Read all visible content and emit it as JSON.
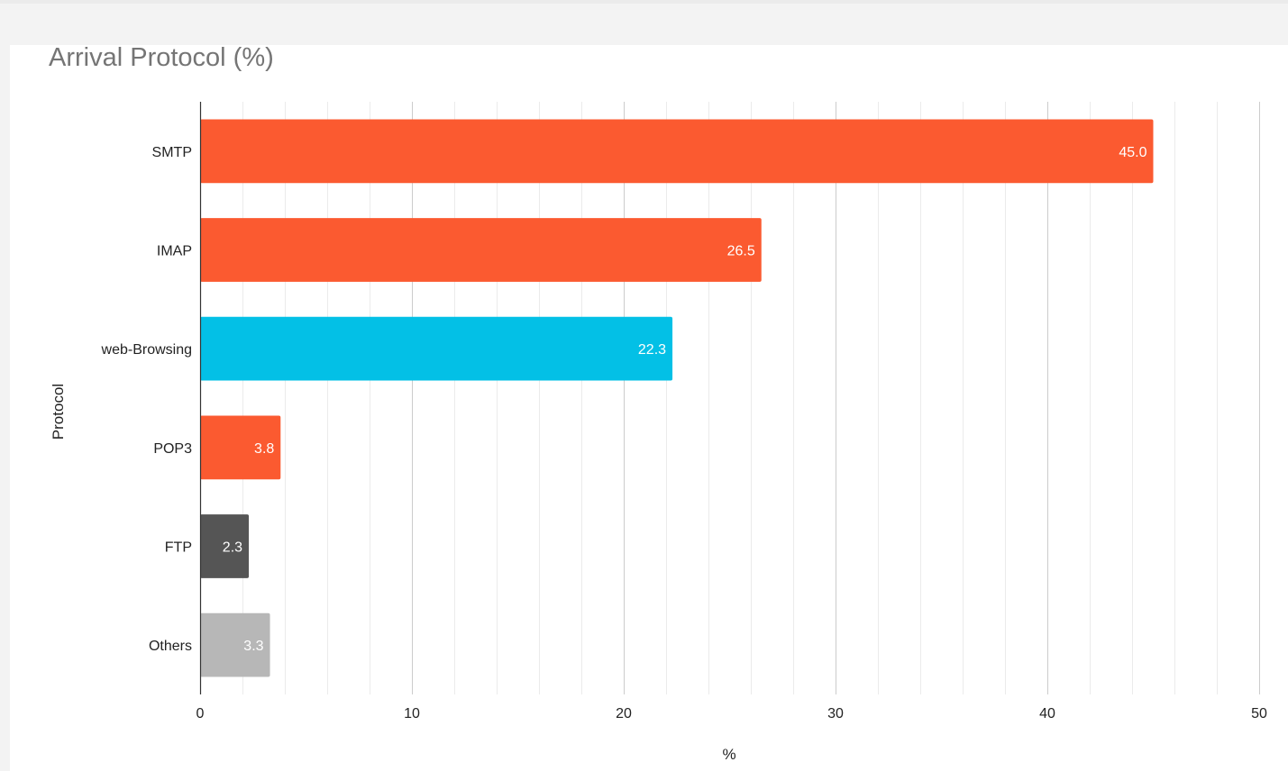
{
  "chart_data": {
    "type": "bar",
    "orientation": "horizontal",
    "title": "Arrival Protocol (%)",
    "xlabel": "%",
    "ylabel": "Protocol",
    "xlim": [
      0,
      50
    ],
    "xticks": [
      "0",
      "10",
      "20",
      "30",
      "40",
      "50"
    ],
    "grid": true,
    "categories": [
      "SMTP",
      "IMAP",
      "web-Browsing",
      "POP3",
      "FTP",
      "Others"
    ],
    "values": [
      45.0,
      26.5,
      22.3,
      3.8,
      2.3,
      3.3
    ],
    "value_labels": [
      "45.0",
      "26.5",
      "22.3",
      "3.8",
      "2.3",
      "3.3"
    ],
    "colors": [
      "#fb5a30",
      "#fb5a30",
      "#03c0e6",
      "#fb5a30",
      "#555555",
      "#b7b7b7"
    ]
  }
}
